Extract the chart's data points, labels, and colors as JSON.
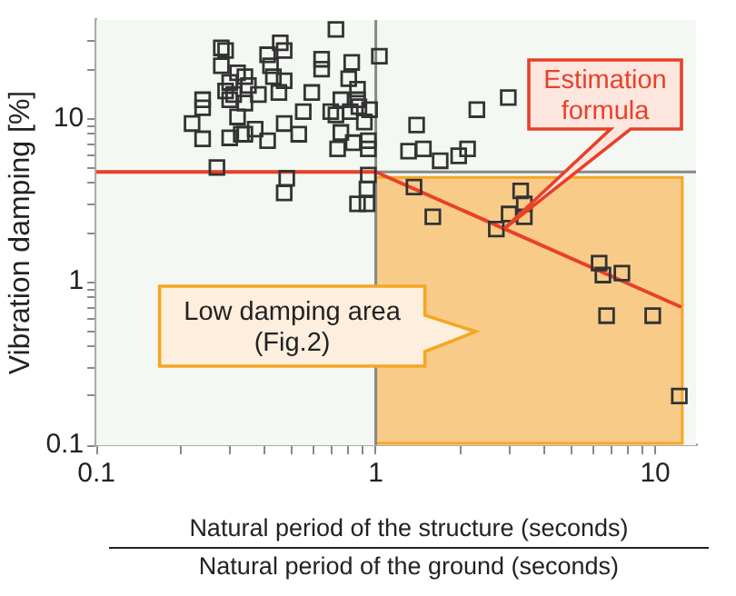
{
  "chart_data": {
    "type": "scatter",
    "xlabel": "Natural period of the structure (seconds)\nNatural period of the ground (seconds)",
    "ylabel": "Vibration damping [%]",
    "log": "xy",
    "xlim": [
      0.1,
      14
    ],
    "ylim": [
      0.1,
      40
    ],
    "xticks": [
      0.1,
      {
        "value": 0.2,
        "label": null
      },
      {
        "value": 0.3,
        "label": null
      },
      {
        "value": 0.4,
        "label": null
      },
      {
        "value": 0.5,
        "label": null
      },
      {
        "value": 0.6,
        "label": null
      },
      {
        "value": 0.7,
        "label": null
      },
      {
        "value": 0.8,
        "label": null
      },
      {
        "value": 0.9,
        "label": null
      },
      1,
      {
        "value": 2,
        "label": null
      },
      {
        "value": 3,
        "label": null
      },
      {
        "value": 4,
        "label": null
      },
      {
        "value": 5,
        "label": null
      },
      {
        "value": 6,
        "label": null
      },
      {
        "value": 7,
        "label": null
      },
      {
        "value": 8,
        "label": null
      },
      {
        "value": 9,
        "label": null
      },
      10
    ],
    "yticks": [
      0.1,
      {
        "value": 0.2,
        "label": null
      },
      {
        "value": 0.3,
        "label": null
      },
      {
        "value": 0.4,
        "label": null
      },
      {
        "value": 0.5,
        "label": null
      },
      {
        "value": 0.6,
        "label": null
      },
      {
        "value": 0.7,
        "label": null
      },
      {
        "value": 0.8,
        "label": null
      },
      {
        "value": 0.9,
        "label": null
      },
      1,
      {
        "value": 2,
        "label": null
      },
      {
        "value": 3,
        "label": null
      },
      {
        "value": 4,
        "label": null
      },
      {
        "value": 5,
        "label": null
      },
      {
        "value": 6,
        "label": null
      },
      {
        "value": 7,
        "label": null
      },
      {
        "value": 8,
        "label": null
      },
      {
        "value": 9,
        "label": null
      },
      10,
      {
        "value": 20,
        "label": null
      },
      {
        "value": 30,
        "label": null
      }
    ],
    "grid": false,
    "legend": false,
    "bands": [
      {
        "axis": "x",
        "from": 1,
        "to": 12.5,
        "label": "Low damping area\n(Fig.2)",
        "color": "#f8cc88"
      }
    ],
    "ref_lines": [
      {
        "axis": "x",
        "value": 1,
        "color": "#888888"
      },
      {
        "axis": "y",
        "value": 4.7,
        "color": "#888888"
      }
    ],
    "series": [
      {
        "color": "#333333",
        "marker": "square",
        "x": [
          0.72,
          0.455,
          0.28,
          0.29,
          0.47,
          0.41,
          0.64,
          1.03,
          0.82,
          0.42,
          0.28,
          0.32,
          0.64,
          0.43,
          0.47,
          0.34,
          0.3,
          0.35,
          0.8,
          0.29,
          0.31,
          0.38,
          0.45,
          0.59,
          0.86,
          0.24,
          0.3,
          0.34,
          0.75,
          0.86,
          0.87,
          0.24,
          0.55,
          0.69,
          0.72,
          0.81,
          0.95,
          0.32,
          0.22,
          0.47,
          0.37,
          0.33,
          0.75,
          0.91,
          0.24,
          0.3,
          0.34,
          0.41,
          0.53,
          0.83,
          0.94,
          0.73,
          0.94,
          0.27,
          0.48,
          0.47,
          0.94,
          0.93,
          0.86,
          0.93,
          2.98,
          2.3,
          1.4,
          1.31,
          1.48,
          1.7,
          1.98,
          2.13,
          1.37,
          3.3,
          1.6,
          3.4,
          3.0,
          3.4,
          2.7,
          6.3,
          6.5,
          7.6,
          6.7,
          9.8,
          12.2
        ],
        "values": [
          35,
          29,
          27,
          26,
          26,
          24.5,
          23,
          24,
          22,
          21,
          21,
          19,
          20,
          18,
          17,
          18,
          16.6,
          15.9,
          17.5,
          14.7,
          14,
          14,
          14.4,
          14.4,
          15.1,
          13,
          13,
          12.4,
          13,
          13,
          11.8,
          11.6,
          11,
          11,
          10.5,
          11,
          11.3,
          10.2,
          9.3,
          9.3,
          8.6,
          8.0,
          8.2,
          9.5,
          7.5,
          7.6,
          8.0,
          7.3,
          8.0,
          7.1,
          7.3,
          6.5,
          6.5,
          5.0,
          4.3,
          3.5,
          4.5,
          3.7,
          3.0,
          3.0,
          13.4,
          11.3,
          9.1,
          6.3,
          6.5,
          5.5,
          5.9,
          6.5,
          3.8,
          3.6,
          2.5,
          3.0,
          2.6,
          2.5,
          2.1,
          1.3,
          1.1,
          1.13,
          0.62,
          0.62,
          0.2
        ]
      },
      {
        "name": "Estimation formula",
        "type": "line",
        "color": "#e8402a",
        "x": [
          0.1,
          1,
          12.4
        ],
        "values": [
          4.7,
          4.7,
          0.7
        ]
      }
    ]
  }
}
